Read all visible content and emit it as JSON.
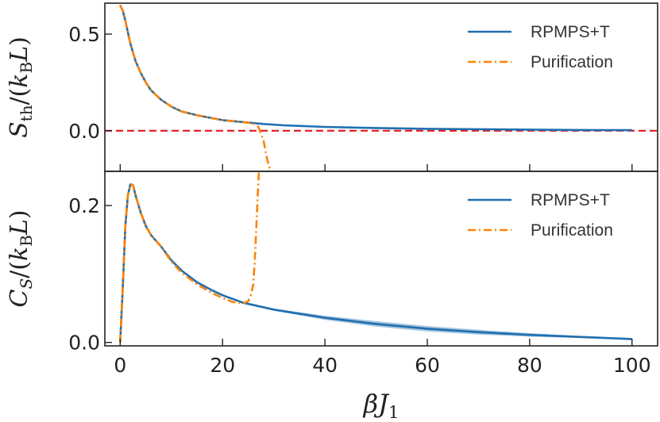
{
  "chart_data": [
    {
      "type": "line",
      "panel": "top",
      "ylabel": "S_th/(k_B L)",
      "xlim": [
        -3,
        105
      ],
      "ylim": [
        -0.21,
        0.66
      ],
      "yticks": [
        {
          "value": 0.0,
          "label": "0.0"
        },
        {
          "value": 0.5,
          "label": "0.5"
        }
      ],
      "reference_line": {
        "y": 0.0,
        "color": "#e8141c",
        "style": "dashed"
      },
      "legend_position": "upper-right",
      "series": [
        {
          "name": "RPMPS+T",
          "color": "#1f6fb0",
          "style": "solid",
          "x": [
            0,
            0.5,
            1,
            1.5,
            2,
            3,
            4,
            5,
            6,
            8,
            10,
            12,
            15,
            18,
            20,
            24,
            28,
            32,
            36,
            40,
            50,
            60,
            70,
            80,
            90,
            100
          ],
          "y": [
            0.65,
            0.62,
            0.57,
            0.51,
            0.45,
            0.36,
            0.3,
            0.25,
            0.21,
            0.16,
            0.125,
            0.1,
            0.08,
            0.065,
            0.055,
            0.045,
            0.035,
            0.028,
            0.024,
            0.02,
            0.014,
            0.01,
            0.008,
            0.006,
            0.004,
            0.003
          ]
        },
        {
          "name": "Purification",
          "color": "#ff8200",
          "style": "dash-dot",
          "x": [
            0,
            0.5,
            1,
            1.5,
            2,
            3,
            4,
            5,
            6,
            8,
            10,
            12,
            15,
            18,
            20,
            24,
            26,
            27,
            28,
            28.5,
            29,
            29.5
          ],
          "y": [
            0.65,
            0.62,
            0.57,
            0.51,
            0.45,
            0.36,
            0.3,
            0.25,
            0.21,
            0.16,
            0.125,
            0.1,
            0.08,
            0.065,
            0.055,
            0.045,
            0.038,
            0.02,
            -0.05,
            -0.12,
            -0.18,
            -0.21
          ]
        }
      ]
    },
    {
      "type": "line",
      "panel": "bottom",
      "xlabel": "βJ_1",
      "ylabel": "C_S/(k_B L)",
      "xlim": [
        -3,
        105
      ],
      "ylim": [
        -0.005,
        0.25
      ],
      "xticks": [
        {
          "value": 0,
          "label": "0"
        },
        {
          "value": 20,
          "label": "20"
        },
        {
          "value": 40,
          "label": "40"
        },
        {
          "value": 60,
          "label": "60"
        },
        {
          "value": 80,
          "label": "80"
        },
        {
          "value": 100,
          "label": "100"
        }
      ],
      "yticks": [
        {
          "value": 0.0,
          "label": "0.0"
        },
        {
          "value": 0.2,
          "label": "0.2"
        }
      ],
      "legend_position": "upper-right",
      "series": [
        {
          "name": "RPMPS+T",
          "color": "#1f6fb0",
          "style": "solid",
          "band": true,
          "x": [
            0,
            0.5,
            1,
            1.5,
            2,
            2.5,
            3,
            4,
            5,
            6,
            8,
            10,
            12,
            15,
            18,
            20,
            24,
            30,
            40,
            50,
            60,
            70,
            80,
            90,
            100
          ],
          "y": [
            0.0,
            0.08,
            0.17,
            0.215,
            0.231,
            0.23,
            0.215,
            0.19,
            0.17,
            0.157,
            0.14,
            0.12,
            0.105,
            0.088,
            0.076,
            0.069,
            0.058,
            0.048,
            0.036,
            0.027,
            0.02,
            0.015,
            0.011,
            0.008,
            0.005
          ],
          "band_halfwidth": [
            0,
            0,
            0,
            0,
            0,
            0,
            0,
            0,
            0,
            0,
            0,
            0,
            0,
            0,
            0,
            0,
            0.0006,
            0.0015,
            0.003,
            0.004,
            0.004,
            0.0035,
            0.0025,
            0.0015,
            0.0008
          ]
        },
        {
          "name": "Purification",
          "color": "#ff8200",
          "style": "dash-dot",
          "x": [
            0,
            0.5,
            1,
            1.5,
            2,
            2.5,
            3,
            4,
            5,
            6,
            8,
            10,
            12,
            15,
            18,
            20,
            22,
            24,
            25,
            25.5,
            26,
            26.3,
            26.6,
            26.9,
            27.1
          ],
          "y": [
            0.0,
            0.08,
            0.17,
            0.215,
            0.231,
            0.23,
            0.215,
            0.19,
            0.17,
            0.157,
            0.14,
            0.118,
            0.102,
            0.085,
            0.072,
            0.065,
            0.059,
            0.057,
            0.06,
            0.068,
            0.085,
            0.12,
            0.17,
            0.22,
            0.25
          ]
        }
      ]
    }
  ]
}
